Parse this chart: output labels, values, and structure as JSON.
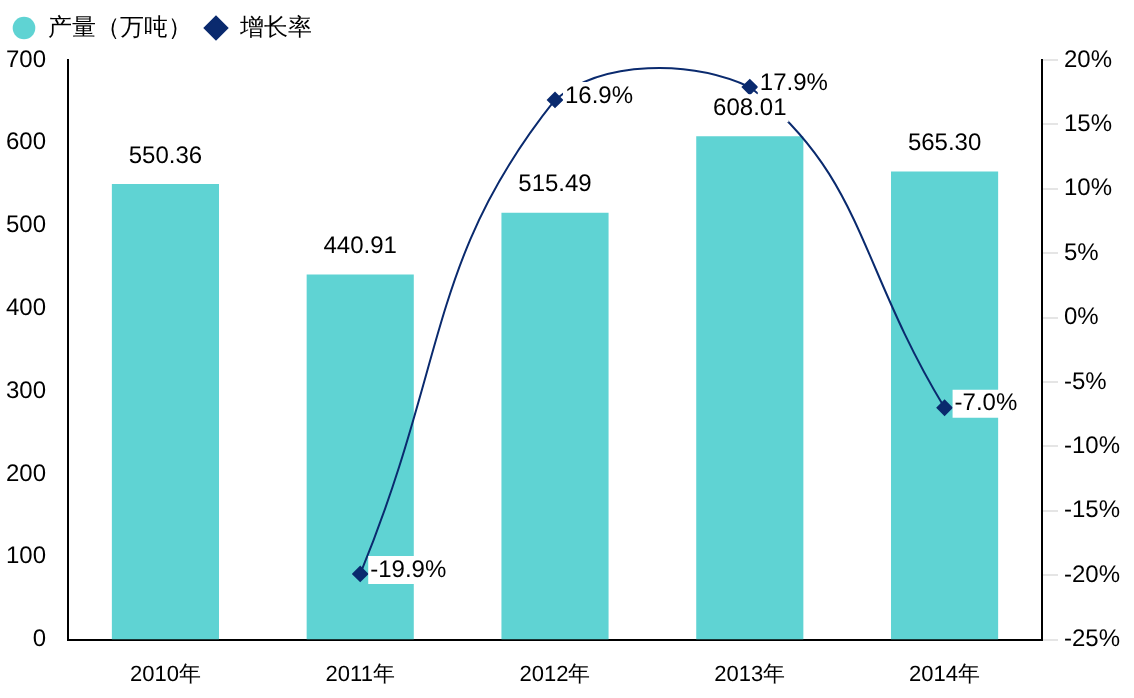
{
  "chart_data": {
    "type": "bar",
    "categories": [
      "2010年",
      "2011年",
      "2012年",
      "2013年",
      "2014年"
    ],
    "series": [
      {
        "name": "产量（万吨）",
        "color": "#5fd3d3",
        "values": [
          550.36,
          440.91,
          515.49,
          608.01,
          565.3
        ],
        "value_labels": [
          "550.36",
          "440.91",
          "515.49",
          "608.01",
          "565.30"
        ]
      },
      {
        "name": "增长率",
        "type": "line",
        "axis": "y2",
        "color": "#0a2a6e",
        "values": [
          null,
          -19.9,
          16.9,
          17.9,
          -7.0
        ],
        "value_labels": [
          null,
          "-19.9%",
          "16.9%",
          "17.9%",
          "-7.0%"
        ]
      }
    ],
    "ylim": [
      0,
      700
    ],
    "yticks": [
      0,
      100,
      200,
      300,
      400,
      500,
      600,
      700
    ],
    "y2lim": [
      -25,
      20
    ],
    "y2ticks": [
      {
        "value": -25,
        "label": "-25%"
      },
      {
        "value": -20,
        "label": "-20%"
      },
      {
        "value": -15,
        "label": "-15%"
      },
      {
        "value": -10,
        "label": "-10%"
      },
      {
        "value": -5,
        "label": "-5%"
      },
      {
        "value": 0,
        "label": "0%"
      },
      {
        "value": 5,
        "label": "5%"
      },
      {
        "value": 10,
        "label": "10%"
      },
      {
        "value": 15,
        "label": "15%"
      },
      {
        "value": 20,
        "label": "20%"
      }
    ],
    "grid": false,
    "legend": "top left",
    "marker": "diamond"
  }
}
